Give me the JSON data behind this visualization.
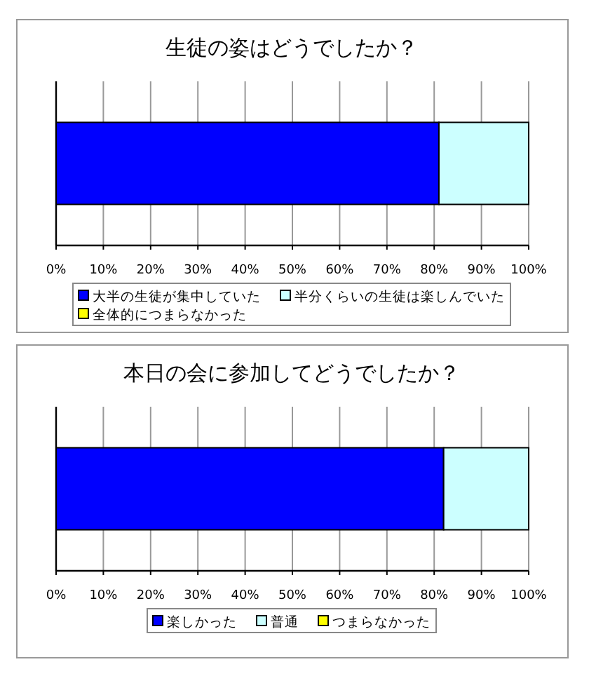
{
  "chart_data": [
    {
      "type": "bar",
      "title": "生徒の姿はどうでしたか？",
      "orientation": "horizontal",
      "stacked": true,
      "categories": [
        null
      ],
      "series": [
        {
          "name": "大半の生徒が集中していた",
          "color": "#0000ff",
          "values": [
            81
          ]
        },
        {
          "name": "半分くらいの生徒は楽しんでいた",
          "color": "#ccffff",
          "values": [
            19
          ]
        },
        {
          "name": "全体的につまらなかった",
          "color": "#ffff00",
          "values": [
            0
          ]
        }
      ],
      "xlim": [
        0,
        100
      ],
      "xticks": [
        {
          "value": 0,
          "label": "0%"
        },
        {
          "value": 10,
          "label": "10%"
        },
        {
          "value": 20,
          "label": "20%"
        },
        {
          "value": 30,
          "label": "30%"
        },
        {
          "value": 40,
          "label": "40%"
        },
        {
          "value": 50,
          "label": "50%"
        },
        {
          "value": 60,
          "label": "60%"
        },
        {
          "value": 70,
          "label": "70%"
        },
        {
          "value": 80,
          "label": "80%"
        },
        {
          "value": 90,
          "label": "90%"
        },
        {
          "value": 100,
          "label": "100%"
        }
      ],
      "grid": "x",
      "legend": "bottom"
    },
    {
      "type": "bar",
      "title": "本日の会に参加してどうでしたか？",
      "orientation": "horizontal",
      "stacked": true,
      "categories": [
        null
      ],
      "series": [
        {
          "name": "楽しかった",
          "color": "#0000ff",
          "values": [
            82
          ]
        },
        {
          "name": "普通",
          "color": "#ccffff",
          "values": [
            18
          ]
        },
        {
          "name": "つまらなかった",
          "color": "#ffff00",
          "values": [
            0
          ]
        }
      ],
      "xlim": [
        0,
        100
      ],
      "xticks": [
        {
          "value": 0,
          "label": "0%"
        },
        {
          "value": 10,
          "label": "10%"
        },
        {
          "value": 20,
          "label": "20%"
        },
        {
          "value": 30,
          "label": "30%"
        },
        {
          "value": 40,
          "label": "40%"
        },
        {
          "value": 50,
          "label": "50%"
        },
        {
          "value": 60,
          "label": "60%"
        },
        {
          "value": 70,
          "label": "70%"
        },
        {
          "value": 80,
          "label": "80%"
        },
        {
          "value": 90,
          "label": "90%"
        },
        {
          "value": 100,
          "label": "100%"
        }
      ],
      "grid": "x",
      "legend": "bottom"
    }
  ]
}
